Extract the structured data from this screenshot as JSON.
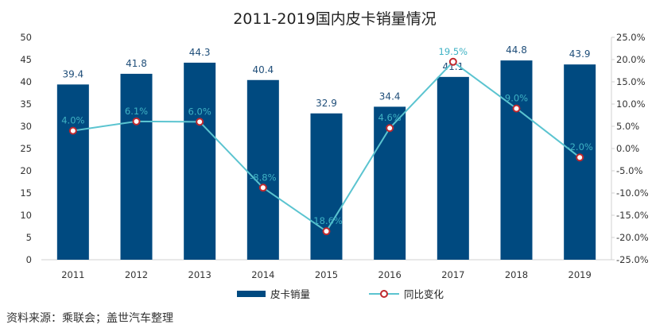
{
  "chart_data": {
    "type": "bar",
    "title": "2011-2019国内皮卡销量情况",
    "categories": [
      "2011",
      "2012",
      "2013",
      "2014",
      "2015",
      "2016",
      "2017",
      "2018",
      "2019"
    ],
    "series": [
      {
        "name": "皮卡销量",
        "type": "bar",
        "axis": "left",
        "values": [
          39.4,
          41.8,
          44.3,
          40.4,
          32.9,
          34.4,
          41.1,
          44.8,
          43.9
        ],
        "labels": [
          "39.4",
          "41.8",
          "44.3",
          "40.4",
          "32.9",
          "34.4",
          "41.1",
          "44.8",
          "43.9"
        ]
      },
      {
        "name": "同比变化",
        "type": "line",
        "axis": "right",
        "values": [
          4.0,
          6.1,
          6.0,
          -8.8,
          -18.6,
          4.6,
          19.5,
          9.0,
          -2.0
        ],
        "labels": [
          "4.0%",
          "6.1%",
          "6.0%",
          "-8.8%",
          "-18.6%",
          "4.6%",
          "19.5%",
          "9.0%",
          "-2.0%"
        ]
      }
    ],
    "y_left": {
      "ylim": [
        0,
        50
      ],
      "ticks": [
        "0",
        "5",
        "10",
        "15",
        "20",
        "25",
        "30",
        "35",
        "40",
        "45",
        "50"
      ]
    },
    "y_right": {
      "ylim": [
        -25,
        25
      ],
      "ticks": [
        "-25.0%",
        "-20.0%",
        "-15.0%",
        "-10.0%",
        "-5.0%",
        "0.0%",
        "5.0%",
        "10.0%",
        "15.0%",
        "20.0%",
        "25.0%"
      ]
    },
    "grid": false,
    "legend_position": "bottom",
    "colors": {
      "bar": "#004a80",
      "line": "#5bc4d0",
      "marker": "#c0282d",
      "pct_label": "#3fb2c4",
      "bar_label": "#1f4e79"
    }
  },
  "source_note": "资料来源：乘联会；盖世汽车整理"
}
